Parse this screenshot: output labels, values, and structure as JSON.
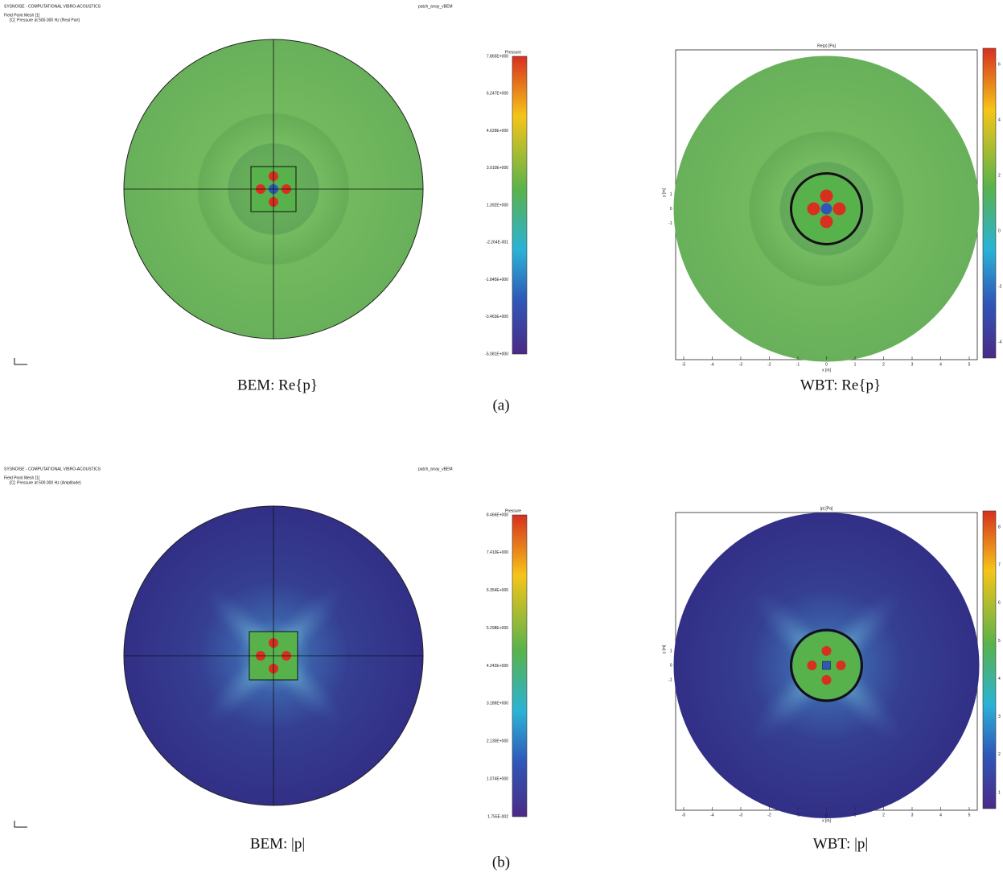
{
  "panels": [
    {
      "label": "(a)",
      "header": {
        "software": "SYSNOISE - COMPUTATIONAL VIBRO-ACOUSTICS",
        "mesh": "Field Point Mesh [1]",
        "result": "[C]: Pressure at 500.000 Hz (Real Part)",
        "model": "patch_array_vBEM"
      },
      "bem": {
        "caption": "BEM: Re{p}",
        "colorbar_title": "Pressure",
        "colorbar_ticks": [
          "7.865E+000",
          "6.247E+000",
          "4.629E+000",
          "3.010E+000",
          "1.392E+000",
          "-2.264E-001",
          "-1.845E+000",
          "-3.463E+000",
          "-5.081E+000"
        ]
      },
      "wbt": {
        "caption": "WBT: Re{p}",
        "title": "Re(p) [Pa]",
        "xlabel": "x [m]",
        "ylabel": "y [m]",
        "xticks": [
          "-5",
          "-4",
          "-3",
          "-2",
          "-1",
          "0",
          "1",
          "2",
          "3",
          "4",
          "5"
        ],
        "yticks": [
          "1",
          "0",
          "-1"
        ],
        "colorbar_ticks": [
          "6",
          "4",
          "2",
          "0",
          "-2",
          "-4"
        ]
      }
    },
    {
      "label": "(b)",
      "header": {
        "software": "SYSNOISE - COMPUTATIONAL VIBRO-ACOUSTICS",
        "mesh": "Field Point Mesh [1]",
        "result": "[C]: Pressure at 500.000 Hz (Amplitude)",
        "model": "patch_array_vBEM"
      },
      "bem": {
        "caption": "BEM: |p|",
        "colorbar_title": "Pressure",
        "colorbar_ticks": [
          "8.466E+000",
          "7.410E+000",
          "6.354E+000",
          "5.298E+000",
          "4.242E+000",
          "3.186E+000",
          "2.130E+000",
          "1.074E+000",
          "1.755E-002"
        ]
      },
      "wbt": {
        "caption": "WBT: |p|",
        "title": "|p| [Pa]",
        "xlabel": "x [m]",
        "ylabel": "y [m]",
        "xticks": [
          "-5",
          "-4",
          "-3",
          "-2",
          "-1",
          "0",
          "1",
          "2",
          "3",
          "4",
          "5"
        ],
        "yticks": [
          "1",
          "0",
          "-1"
        ],
        "colorbar_ticks": [
          "8",
          "7",
          "6",
          "5",
          "4",
          "3",
          "2",
          "1"
        ]
      }
    }
  ]
}
